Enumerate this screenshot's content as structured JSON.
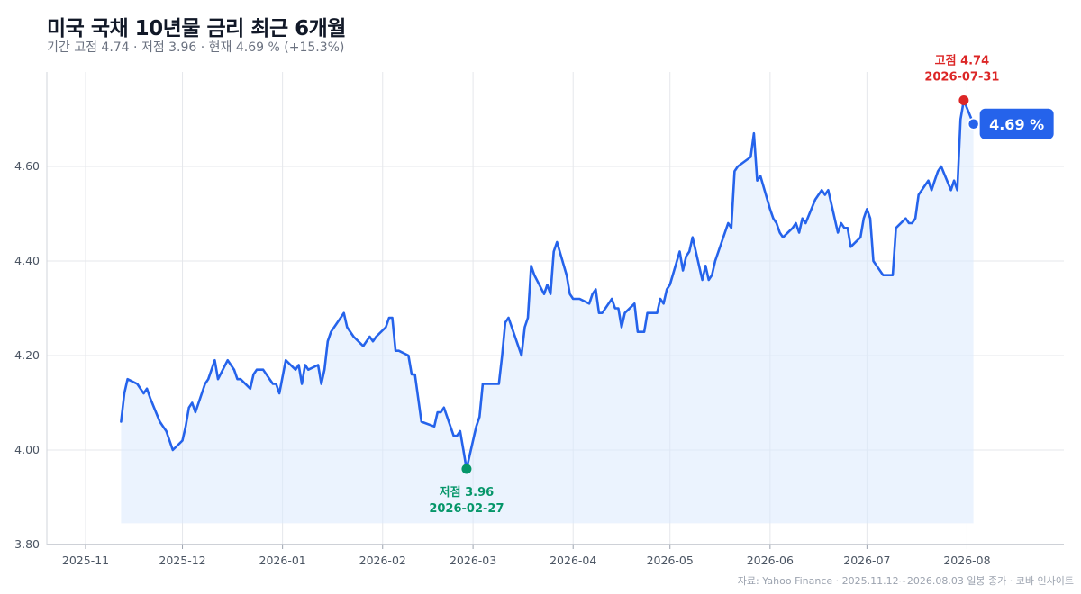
{
  "title": "미국 국채 10년물 금리 최근 6개월",
  "subtitle": "기간 고점 4.74 · 저점 3.96 · 현재 4.69 % (+15.3%)",
  "footer": "자료: Yahoo Finance · 2025.11.12~2026.08.03 일봉 종가 · 코바 인사이트",
  "colors": {
    "line": "#2563eb",
    "fill": "#dbeafe",
    "high": "#dc2626",
    "low": "#059669",
    "badge": "#2563eb",
    "grid": "#e5e7eb"
  },
  "chart_data": {
    "type": "line",
    "x_format": "date",
    "ylim": [
      3.8,
      4.8
    ],
    "xlim": [
      "2025-10-20",
      "2026-08-31"
    ],
    "y_ticks": [
      "3.80",
      "4.00",
      "4.20",
      "4.40",
      "4.60"
    ],
    "x_ticks": [
      "2025-11",
      "2025-12",
      "2026-01",
      "2026-02",
      "2026-03",
      "2026-04",
      "2026-05",
      "2026-06",
      "2026-07",
      "2026-08"
    ],
    "high": {
      "label": "고점 4.74",
      "date_label": "2026-07-31",
      "date": "2026-07-31",
      "value": 4.74
    },
    "low": {
      "label": "저점 3.96",
      "date_label": "2026-02-27",
      "date": "2026-02-27",
      "value": 3.96
    },
    "current": {
      "label": "4.69 %",
      "date": "2026-08-03",
      "value": 4.69
    },
    "series": [
      {
        "points": [
          [
            "2025-11-12",
            4.06
          ],
          [
            "2025-11-13",
            4.12
          ],
          [
            "2025-11-14",
            4.15
          ],
          [
            "2025-11-17",
            4.14
          ],
          [
            "2025-11-18",
            4.13
          ],
          [
            "2025-11-19",
            4.12
          ],
          [
            "2025-11-20",
            4.13
          ],
          [
            "2025-11-21",
            4.11
          ],
          [
            "2025-11-24",
            4.06
          ],
          [
            "2025-11-25",
            4.05
          ],
          [
            "2025-11-26",
            4.04
          ],
          [
            "2025-11-27",
            4.02
          ],
          [
            "2025-11-28",
            4.0
          ],
          [
            "2025-12-01",
            4.02
          ],
          [
            "2025-12-02",
            4.05
          ],
          [
            "2025-12-03",
            4.09
          ],
          [
            "2025-12-04",
            4.1
          ],
          [
            "2025-12-05",
            4.08
          ],
          [
            "2025-12-08",
            4.14
          ],
          [
            "2025-12-09",
            4.15
          ],
          [
            "2025-12-10",
            4.17
          ],
          [
            "2025-12-11",
            4.19
          ],
          [
            "2025-12-12",
            4.15
          ],
          [
            "2025-12-15",
            4.19
          ],
          [
            "2025-12-16",
            4.18
          ],
          [
            "2025-12-17",
            4.17
          ],
          [
            "2025-12-18",
            4.15
          ],
          [
            "2025-12-19",
            4.15
          ],
          [
            "2025-12-22",
            4.13
          ],
          [
            "2025-12-23",
            4.16
          ],
          [
            "2025-12-24",
            4.17
          ],
          [
            "2025-12-26",
            4.17
          ],
          [
            "2025-12-29",
            4.14
          ],
          [
            "2025-12-30",
            4.14
          ],
          [
            "2025-12-31",
            4.12
          ],
          [
            "2026-01-02",
            4.19
          ],
          [
            "2026-01-05",
            4.17
          ],
          [
            "2026-01-06",
            4.18
          ],
          [
            "2026-01-07",
            4.14
          ],
          [
            "2026-01-08",
            4.18
          ],
          [
            "2026-01-09",
            4.17
          ],
          [
            "2026-01-12",
            4.18
          ],
          [
            "2026-01-13",
            4.14
          ],
          [
            "2026-01-14",
            4.17
          ],
          [
            "2026-01-15",
            4.23
          ],
          [
            "2026-01-16",
            4.25
          ],
          [
            "2026-01-20",
            4.29
          ],
          [
            "2026-01-21",
            4.26
          ],
          [
            "2026-01-22",
            4.25
          ],
          [
            "2026-01-23",
            4.24
          ],
          [
            "2026-01-26",
            4.22
          ],
          [
            "2026-01-27",
            4.23
          ],
          [
            "2026-01-28",
            4.24
          ],
          [
            "2026-01-29",
            4.23
          ],
          [
            "2026-01-30",
            4.24
          ],
          [
            "2026-02-02",
            4.26
          ],
          [
            "2026-02-03",
            4.28
          ],
          [
            "2026-02-04",
            4.28
          ],
          [
            "2026-02-05",
            4.21
          ],
          [
            "2026-02-06",
            4.21
          ],
          [
            "2026-02-09",
            4.2
          ],
          [
            "2026-02-10",
            4.16
          ],
          [
            "2026-02-11",
            4.16
          ],
          [
            "2026-02-12",
            4.11
          ],
          [
            "2026-02-13",
            4.06
          ],
          [
            "2026-02-17",
            4.05
          ],
          [
            "2026-02-18",
            4.08
          ],
          [
            "2026-02-19",
            4.08
          ],
          [
            "2026-02-20",
            4.09
          ],
          [
            "2026-02-23",
            4.03
          ],
          [
            "2026-02-24",
            4.03
          ],
          [
            "2026-02-25",
            4.04
          ],
          [
            "2026-02-26",
            4.0
          ],
          [
            "2026-02-27",
            3.96
          ],
          [
            "2026-03-02",
            4.05
          ],
          [
            "2026-03-03",
            4.07
          ],
          [
            "2026-03-04",
            4.14
          ],
          [
            "2026-03-05",
            4.14
          ],
          [
            "2026-03-06",
            4.14
          ],
          [
            "2026-03-09",
            4.14
          ],
          [
            "2026-03-10",
            4.2
          ],
          [
            "2026-03-11",
            4.27
          ],
          [
            "2026-03-12",
            4.28
          ],
          [
            "2026-03-13",
            4.26
          ],
          [
            "2026-03-16",
            4.2
          ],
          [
            "2026-03-17",
            4.26
          ],
          [
            "2026-03-18",
            4.28
          ],
          [
            "2026-03-19",
            4.39
          ],
          [
            "2026-03-20",
            4.37
          ],
          [
            "2026-03-23",
            4.33
          ],
          [
            "2026-03-24",
            4.35
          ],
          [
            "2026-03-25",
            4.33
          ],
          [
            "2026-03-26",
            4.42
          ],
          [
            "2026-03-27",
            4.44
          ],
          [
            "2026-03-30",
            4.37
          ],
          [
            "2026-03-31",
            4.33
          ],
          [
            "2026-04-01",
            4.32
          ],
          [
            "2026-04-02",
            4.32
          ],
          [
            "2026-04-03",
            4.32
          ],
          [
            "2026-04-06",
            4.31
          ],
          [
            "2026-04-07",
            4.33
          ],
          [
            "2026-04-08",
            4.34
          ],
          [
            "2026-04-09",
            4.29
          ],
          [
            "2026-04-10",
            4.29
          ],
          [
            "2026-04-13",
            4.32
          ],
          [
            "2026-04-14",
            4.3
          ],
          [
            "2026-04-15",
            4.3
          ],
          [
            "2026-04-16",
            4.26
          ],
          [
            "2026-04-17",
            4.29
          ],
          [
            "2026-04-20",
            4.31
          ],
          [
            "2026-04-21",
            4.25
          ],
          [
            "2026-04-22",
            4.25
          ],
          [
            "2026-04-23",
            4.25
          ],
          [
            "2026-04-24",
            4.29
          ],
          [
            "2026-04-27",
            4.29
          ],
          [
            "2026-04-28",
            4.32
          ],
          [
            "2026-04-29",
            4.31
          ],
          [
            "2026-04-30",
            4.34
          ],
          [
            "2026-05-01",
            4.35
          ],
          [
            "2026-05-04",
            4.42
          ],
          [
            "2026-05-05",
            4.38
          ],
          [
            "2026-05-06",
            4.41
          ],
          [
            "2026-05-07",
            4.42
          ],
          [
            "2026-05-08",
            4.45
          ],
          [
            "2026-05-11",
            4.36
          ],
          [
            "2026-05-12",
            4.39
          ],
          [
            "2026-05-13",
            4.36
          ],
          [
            "2026-05-14",
            4.37
          ],
          [
            "2026-05-15",
            4.4
          ],
          [
            "2026-05-18",
            4.46
          ],
          [
            "2026-05-19",
            4.48
          ],
          [
            "2026-05-20",
            4.47
          ],
          [
            "2026-05-21",
            4.59
          ],
          [
            "2026-05-22",
            4.6
          ],
          [
            "2026-05-26",
            4.62
          ],
          [
            "2026-05-27",
            4.67
          ],
          [
            "2026-05-28",
            4.57
          ],
          [
            "2026-05-29",
            4.58
          ],
          [
            "2026-06-01",
            4.51
          ],
          [
            "2026-06-02",
            4.49
          ],
          [
            "2026-06-03",
            4.48
          ],
          [
            "2026-06-04",
            4.46
          ],
          [
            "2026-06-05",
            4.45
          ],
          [
            "2026-06-08",
            4.47
          ],
          [
            "2026-06-09",
            4.48
          ],
          [
            "2026-06-10",
            4.46
          ],
          [
            "2026-06-11",
            4.49
          ],
          [
            "2026-06-12",
            4.48
          ],
          [
            "2026-06-15",
            4.53
          ],
          [
            "2026-06-16",
            4.54
          ],
          [
            "2026-06-17",
            4.55
          ],
          [
            "2026-06-18",
            4.54
          ],
          [
            "2026-06-19",
            4.55
          ],
          [
            "2026-06-22",
            4.46
          ],
          [
            "2026-06-23",
            4.48
          ],
          [
            "2026-06-24",
            4.47
          ],
          [
            "2026-06-25",
            4.47
          ],
          [
            "2026-06-26",
            4.43
          ],
          [
            "2026-06-29",
            4.45
          ],
          [
            "2026-06-30",
            4.49
          ],
          [
            "2026-07-01",
            4.51
          ],
          [
            "2026-07-02",
            4.49
          ],
          [
            "2026-07-03",
            4.4
          ],
          [
            "2026-07-06",
            4.37
          ],
          [
            "2026-07-07",
            4.37
          ],
          [
            "2026-07-08",
            4.37
          ],
          [
            "2026-07-09",
            4.37
          ],
          [
            "2026-07-10",
            4.47
          ],
          [
            "2026-07-13",
            4.49
          ],
          [
            "2026-07-14",
            4.48
          ],
          [
            "2026-07-15",
            4.48
          ],
          [
            "2026-07-16",
            4.49
          ],
          [
            "2026-07-17",
            4.54
          ],
          [
            "2026-07-20",
            4.57
          ],
          [
            "2026-07-21",
            4.55
          ],
          [
            "2026-07-22",
            4.57
          ],
          [
            "2026-07-23",
            4.59
          ],
          [
            "2026-07-24",
            4.6
          ],
          [
            "2026-07-27",
            4.55
          ],
          [
            "2026-07-28",
            4.57
          ],
          [
            "2026-07-29",
            4.55
          ],
          [
            "2026-07-30",
            4.7
          ],
          [
            "2026-07-31",
            4.74
          ],
          [
            "2026-08-03",
            4.69
          ]
        ]
      }
    ]
  }
}
